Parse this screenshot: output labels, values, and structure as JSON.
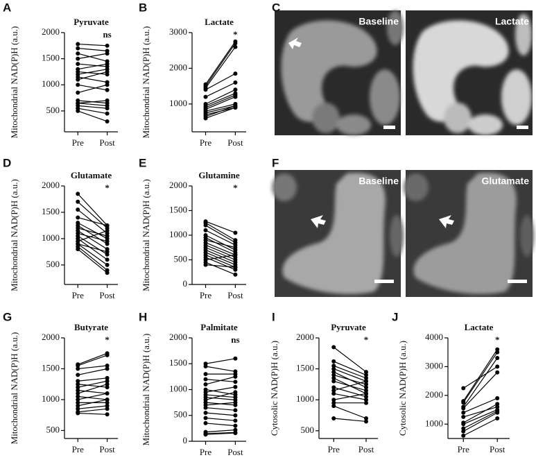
{
  "chart_data": [
    {
      "type": "paired",
      "panel": "A",
      "title": "Pyruvate",
      "annotation": "ns",
      "y_label": "Mitochondrial NAD(P)H (a.u.)",
      "categories": [
        "Pre",
        "Post"
      ],
      "color": "#000000",
      "ylim": [
        100,
        2000
      ],
      "yticks": [
        500,
        1000,
        1500,
        2000
      ],
      "series": [
        {
          "values": [
            1780,
            1750
          ]
        },
        {
          "values": [
            1700,
            1650
          ]
        },
        {
          "values": [
            1600,
            1450
          ]
        },
        {
          "values": [
            1500,
            1600
          ]
        },
        {
          "values": [
            1400,
            1350
          ]
        },
        {
          "values": [
            1300,
            1400
          ]
        },
        {
          "values": [
            1250,
            1200
          ]
        },
        {
          "values": [
            1200,
            1300
          ]
        },
        {
          "values": [
            1150,
            1050
          ]
        },
        {
          "values": [
            1100,
            1250
          ]
        },
        {
          "values": [
            1000,
            900
          ]
        },
        {
          "values": [
            850,
            1000
          ]
        },
        {
          "values": [
            700,
            650
          ]
        },
        {
          "values": [
            650,
            600
          ]
        },
        {
          "values": [
            600,
            550
          ]
        },
        {
          "values": [
            550,
            450
          ]
        },
        {
          "values": [
            500,
            300
          ]
        },
        {
          "values": [
            650,
            700
          ]
        }
      ]
    },
    {
      "type": "paired",
      "panel": "B",
      "title": "Lactate",
      "annotation": "*",
      "y_label": "Mitochondrial NAD(P)H (a.u.)",
      "categories": [
        "Pre",
        "Post"
      ],
      "color": "#000000",
      "ylim": [
        220,
        3000
      ],
      "yticks": [
        1000,
        2000,
        3000
      ],
      "series": [
        {
          "values": [
            1550,
            2750
          ]
        },
        {
          "values": [
            1500,
            2700
          ]
        },
        {
          "values": [
            1450,
            2600
          ]
        },
        {
          "values": [
            1400,
            1850
          ]
        },
        {
          "values": [
            1200,
            1600
          ]
        },
        {
          "values": [
            1000,
            1400
          ]
        },
        {
          "values": [
            950,
            1300
          ]
        },
        {
          "values": [
            900,
            1250
          ]
        },
        {
          "values": [
            850,
            1200
          ]
        },
        {
          "values": [
            800,
            1000
          ]
        },
        {
          "values": [
            750,
            950
          ]
        },
        {
          "values": [
            700,
            900
          ]
        },
        {
          "values": [
            650,
            950
          ]
        },
        {
          "values": [
            600,
            900
          ]
        }
      ]
    },
    {
      "type": "paired",
      "panel": "D",
      "title": "Glutamate",
      "annotation": "*",
      "y_label": "Mitochondrial NAD(P)H (a.u.)",
      "categories": [
        "Pre",
        "Post"
      ],
      "color": "#000000",
      "ylim": [
        130,
        2000
      ],
      "yticks": [
        500,
        1000,
        1500,
        2000
      ],
      "series": [
        {
          "values": [
            1850,
            1250
          ]
        },
        {
          "values": [
            1700,
            1200
          ]
        },
        {
          "values": [
            1550,
            1100
          ]
        },
        {
          "values": [
            1400,
            1250
          ]
        },
        {
          "values": [
            1300,
            1000
          ]
        },
        {
          "values": [
            1250,
            900
          ]
        },
        {
          "values": [
            1200,
            1050
          ]
        },
        {
          "values": [
            1150,
            800
          ]
        },
        {
          "values": [
            1100,
            950
          ]
        },
        {
          "values": [
            1050,
            700
          ]
        },
        {
          "values": [
            1000,
            600
          ]
        },
        {
          "values": [
            950,
            1150
          ]
        },
        {
          "values": [
            900,
            500
          ]
        },
        {
          "values": [
            850,
            400
          ]
        },
        {
          "values": [
            800,
            350
          ]
        },
        {
          "values": [
            900,
            750
          ]
        }
      ]
    },
    {
      "type": "paired",
      "panel": "E",
      "title": "Glutamine",
      "annotation": "*",
      "y_label": "Mitochondrial NAD(P)H (a.u.)",
      "categories": [
        "Pre",
        "Post"
      ],
      "color": "#000000",
      "ylim": [
        0,
        2000
      ],
      "yticks": [
        0,
        500,
        1000,
        1500,
        2000
      ],
      "series": [
        {
          "values": [
            1280,
            1050
          ]
        },
        {
          "values": [
            1250,
            900
          ]
        },
        {
          "values": [
            1200,
            850
          ]
        },
        {
          "values": [
            1100,
            800
          ]
        },
        {
          "values": [
            1000,
            700
          ]
        },
        {
          "values": [
            950,
            650
          ]
        },
        {
          "values": [
            900,
            750
          ]
        },
        {
          "values": [
            850,
            600
          ]
        },
        {
          "values": [
            800,
            550
          ]
        },
        {
          "values": [
            750,
            500
          ]
        },
        {
          "values": [
            700,
            450
          ]
        },
        {
          "values": [
            650,
            400
          ]
        },
        {
          "values": [
            600,
            350
          ]
        },
        {
          "values": [
            550,
            300
          ]
        },
        {
          "values": [
            500,
            600
          ]
        },
        {
          "values": [
            450,
            200
          ]
        },
        {
          "values": [
            400,
            350
          ]
        }
      ]
    },
    {
      "type": "paired",
      "panel": "G",
      "title": "Butyrate",
      "annotation": "*",
      "y_label": "Mitochondrial NAD(P)H (a.u.)",
      "categories": [
        "Pre",
        "Post"
      ],
      "color": "#000000",
      "ylim": [
        370,
        2000
      ],
      "yticks": [
        500,
        1000,
        1500,
        2000
      ],
      "series": [
        {
          "values": [
            1570,
            1750
          ]
        },
        {
          "values": [
            1550,
            1720
          ]
        },
        {
          "values": [
            1500,
            1550
          ]
        },
        {
          "values": [
            1400,
            1500
          ]
        },
        {
          "values": [
            1300,
            1350
          ]
        },
        {
          "values": [
            1250,
            1200
          ]
        },
        {
          "values": [
            1200,
            1300
          ]
        },
        {
          "values": [
            1150,
            1100
          ]
        },
        {
          "values": [
            1100,
            1250
          ]
        },
        {
          "values": [
            1050,
            1000
          ]
        },
        {
          "values": [
            1000,
            1100
          ]
        },
        {
          "values": [
            950,
            950
          ]
        },
        {
          "values": [
            900,
            1000
          ]
        },
        {
          "values": [
            850,
            900
          ]
        },
        {
          "values": [
            800,
            850
          ]
        },
        {
          "values": [
            780,
            760
          ]
        }
      ]
    },
    {
      "type": "paired",
      "panel": "H",
      "title": "Palmitate",
      "annotation": "ns",
      "y_label": "Mitochondrial NAD(P)H (a.u.)",
      "categories": [
        "Pre",
        "Post"
      ],
      "color": "#000000",
      "ylim": [
        0,
        2000
      ],
      "yticks": [
        0,
        500,
        1000,
        1500,
        2000
      ],
      "series": [
        {
          "values": [
            1500,
            1600
          ]
        },
        {
          "values": [
            1450,
            1350
          ]
        },
        {
          "values": [
            1300,
            1300
          ]
        },
        {
          "values": [
            1200,
            1150
          ]
        },
        {
          "values": [
            1100,
            1250
          ]
        },
        {
          "values": [
            1000,
            900
          ]
        },
        {
          "values": [
            950,
            1050
          ]
        },
        {
          "values": [
            900,
            850
          ]
        },
        {
          "values": [
            850,
            800
          ]
        },
        {
          "values": [
            800,
            950
          ]
        },
        {
          "values": [
            750,
            700
          ]
        },
        {
          "values": [
            700,
            750
          ]
        },
        {
          "values": [
            650,
            600
          ]
        },
        {
          "values": [
            550,
            500
          ]
        },
        {
          "values": [
            450,
            400
          ]
        },
        {
          "values": [
            350,
            300
          ]
        },
        {
          "values": [
            180,
            220
          ]
        },
        {
          "values": [
            150,
            170
          ]
        },
        {
          "values": [
            130,
            160
          ]
        }
      ]
    },
    {
      "type": "paired",
      "panel": "I",
      "title": "Pyruvate",
      "annotation": "*",
      "y_label": "Cytosolic NAD(P)H (a.u.)",
      "categories": [
        "Pre",
        "Post"
      ],
      "color": "#000000",
      "ylim": [
        375,
        2000
      ],
      "yticks": [
        500,
        1000,
        1500,
        2000
      ],
      "series": [
        {
          "values": [
            1850,
            1450
          ]
        },
        {
          "values": [
            1620,
            1400
          ]
        },
        {
          "values": [
            1550,
            1350
          ]
        },
        {
          "values": [
            1500,
            1300
          ]
        },
        {
          "values": [
            1450,
            1200
          ]
        },
        {
          "values": [
            1400,
            1250
          ]
        },
        {
          "values": [
            1350,
            1100
          ]
        },
        {
          "values": [
            1300,
            1150
          ]
        },
        {
          "values": [
            1200,
            1050
          ]
        },
        {
          "values": [
            1150,
            1300
          ]
        },
        {
          "values": [
            1100,
            1000
          ]
        },
        {
          "values": [
            1000,
            1100
          ]
        },
        {
          "values": [
            950,
            950
          ]
        },
        {
          "values": [
            900,
            700
          ]
        },
        {
          "values": [
            700,
            650
          ]
        }
      ]
    },
    {
      "type": "paired",
      "panel": "J",
      "title": "Lactate",
      "annotation": "*",
      "y_label": "Cytosolic NAD(P)H (a.u.)",
      "categories": [
        "Pre",
        "Post"
      ],
      "color": "#000000",
      "ylim": [
        500,
        4000
      ],
      "yticks": [
        1000,
        2000,
        3000,
        4000
      ],
      "series": [
        {
          "values": [
            2250,
            3000
          ]
        },
        {
          "values": [
            1800,
            3600
          ]
        },
        {
          "values": [
            1750,
            3500
          ]
        },
        {
          "values": [
            1600,
            3300
          ]
        },
        {
          "values": [
            1550,
            2800
          ]
        },
        {
          "values": [
            1400,
            1900
          ]
        },
        {
          "values": [
            1250,
            1600
          ]
        },
        {
          "values": [
            1050,
            1700
          ]
        },
        {
          "values": [
            1000,
            1500
          ]
        },
        {
          "values": [
            850,
            1450
          ]
        },
        {
          "values": [
            750,
            1400
          ]
        },
        {
          "values": [
            600,
            1200
          ]
        }
      ]
    }
  ],
  "image_panels": [
    {
      "panel": "C",
      "labels": [
        "Baseline",
        "Lactate"
      ]
    },
    {
      "panel": "F",
      "labels": [
        "Baseline",
        "Glutamate"
      ]
    }
  ]
}
